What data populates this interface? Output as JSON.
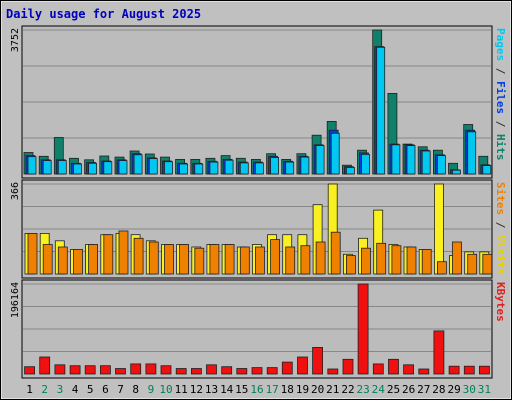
{
  "chart_data": {
    "type": "bar",
    "title": "Daily usage for August 2025",
    "categories": [
      "1",
      "2",
      "3",
      "4",
      "5",
      "6",
      "7",
      "8",
      "9",
      "10",
      "11",
      "12",
      "13",
      "14",
      "15",
      "16",
      "17",
      "18",
      "19",
      "20",
      "21",
      "22",
      "23",
      "24",
      "25",
      "26",
      "27",
      "28",
      "29",
      "30",
      "31"
    ],
    "weekend_days": [
      "2",
      "3",
      "9",
      "10",
      "16",
      "17",
      "23",
      "24",
      "30",
      "31"
    ],
    "panels": [
      {
        "id": "hits",
        "ymax_label": "3752",
        "ylim": [
          0,
          3752
        ],
        "ylabel_parts": [
          {
            "text": "Pages",
            "color": "#00c8f0"
          },
          {
            "text": " / ",
            "color": "#333333"
          },
          {
            "text": "Files",
            "color": "#0040e0"
          },
          {
            "text": " / ",
            "color": "#333333"
          },
          {
            "text": "Hits",
            "color": "#10806a"
          }
        ],
        "series": [
          {
            "name": "Hits",
            "color": "#10806a",
            "values": [
              560,
              460,
              950,
              410,
              370,
              470,
              440,
              600,
              520,
              440,
              380,
              380,
              410,
              480,
              410,
              380,
              530,
              380,
              530,
              1010,
              1370,
              230,
              620,
              3752,
              2100,
              780,
              710,
              620,
              280,
              1290,
              460
            ]
          },
          {
            "name": "Files",
            "color": "#0040e0",
            "values": [
              480,
              370,
              370,
              280,
              300,
              340,
              370,
              530,
              420,
              340,
              280,
              280,
              330,
              380,
              310,
              310,
              460,
              330,
              460,
              760,
              1140,
              190,
              550,
              3320,
              780,
              760,
              620,
              500,
              110,
              1140,
              240
            ]
          },
          {
            "name": "Pages",
            "color": "#00c8f0",
            "values": [
              450,
              350,
              350,
              260,
              280,
              320,
              350,
              500,
              400,
              320,
              260,
              260,
              310,
              360,
              290,
              290,
              430,
              310,
              440,
              740,
              1060,
              170,
              510,
              3300,
              760,
              740,
              600,
              480,
              100,
              1100,
              220
            ]
          }
        ]
      },
      {
        "id": "visits",
        "ymax_label": "366",
        "ylim": [
          0,
          366
        ],
        "ylabel_parts": [
          {
            "text": "Sites",
            "color": "#f08000"
          },
          {
            "text": " / ",
            "color": "#333333"
          },
          {
            "text": "Visits",
            "color": "#e8d000"
          }
        ],
        "series": [
          {
            "name": "Visits",
            "color": "#f8f020",
            "values": [
              165,
              165,
              135,
              100,
              120,
              160,
              165,
              160,
              135,
              120,
              120,
              110,
              120,
              120,
              110,
              120,
              160,
              160,
              160,
              282,
              366,
              80,
              145,
              260,
              120,
              110,
              100,
              366,
              75,
              90,
              90
            ]
          },
          {
            "name": "Sites",
            "color": "#f08000",
            "values": [
              165,
              120,
              110,
              100,
              120,
              160,
              175,
              145,
              130,
              120,
              120,
              105,
              120,
              120,
              110,
              110,
              140,
              110,
              115,
              130,
              170,
              75,
              105,
              125,
              115,
              110,
              100,
              50,
              130,
              80,
              80
            ]
          }
        ]
      },
      {
        "id": "kbytes",
        "ymax_label": "196164",
        "ylim": [
          0,
          196164
        ],
        "ylabel_parts": [
          {
            "text": "KBytes",
            "color": "#e02020"
          }
        ],
        "series": [
          {
            "name": "KBytes",
            "color": "#f01010",
            "values": [
              16000,
              37000,
              20000,
              18000,
              18000,
              18000,
              12000,
              22000,
              22000,
              18000,
              12000,
              12000,
              20000,
              16000,
              12000,
              14000,
              14000,
              26000,
              37000,
              58000,
              11000,
              32000,
              196164,
              22000,
              32000,
              20000,
              11000,
              94000,
              17000,
              17000,
              17000
            ]
          }
        ]
      }
    ]
  }
}
